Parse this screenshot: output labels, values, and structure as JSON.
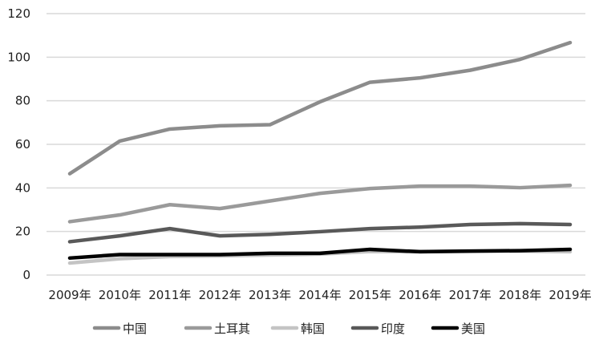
{
  "chart_data": {
    "type": "line",
    "categories": [
      "2009年",
      "2010年",
      "2011年",
      "2012年",
      "2013年",
      "2014年",
      "2015年",
      "2016年",
      "2017年",
      "2018年",
      "2019年"
    ],
    "ylim": [
      0,
      120
    ],
    "yticks": [
      0,
      20,
      40,
      60,
      80,
      100,
      120
    ],
    "grid": true,
    "legend_position": "bottom",
    "series": [
      {
        "name": "中国",
        "color": "#8c8c8c",
        "values": [
          46.5,
          61.5,
          67,
          68.5,
          69,
          79.5,
          88.5,
          90.5,
          94,
          99,
          106.7
        ]
      },
      {
        "name": "土耳其",
        "color": "#9a9a9a",
        "values": [
          24.5,
          27.6,
          32.3,
          30.5,
          34,
          37.5,
          39.7,
          40.8,
          40.8,
          40.1,
          41.2
        ]
      },
      {
        "name": "韩国",
        "color": "#c4c4c4",
        "values": [
          5.5,
          7.5,
          8.5,
          8.8,
          9.2,
          9.6,
          10.8,
          10.7,
          10.9,
          11,
          10.7
        ]
      },
      {
        "name": "印度",
        "color": "#595959",
        "values": [
          15.3,
          18,
          21.3,
          18,
          18.7,
          19.9,
          21.3,
          22,
          23.2,
          23.6,
          23.2
        ]
      },
      {
        "name": "美国",
        "color": "#000000",
        "values": [
          7.8,
          9.4,
          9.4,
          9.4,
          10,
          10,
          11.8,
          10.7,
          11,
          11.2,
          11.8
        ]
      }
    ]
  }
}
